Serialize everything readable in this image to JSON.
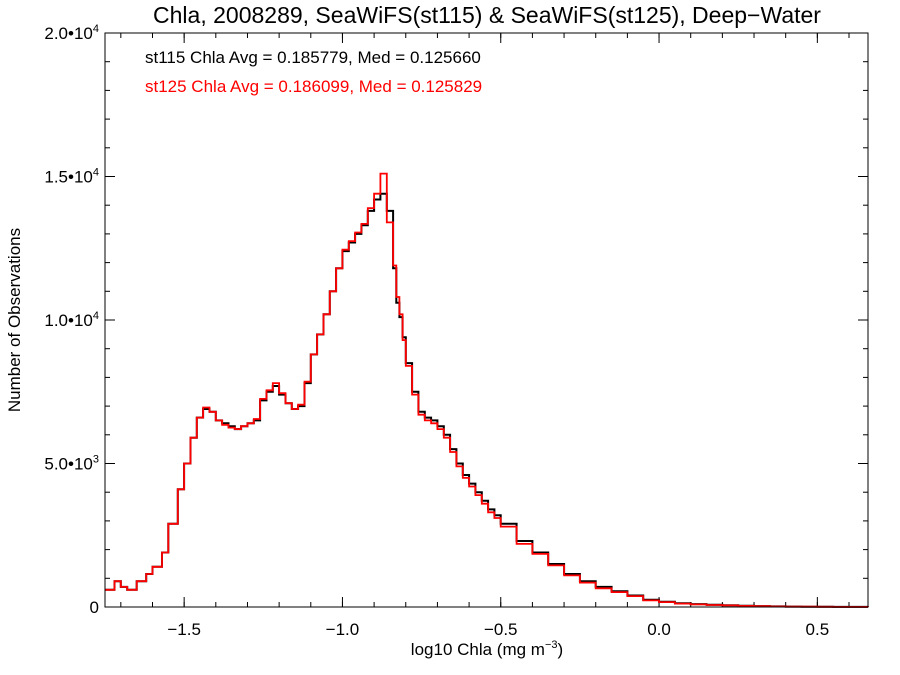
{
  "chart_data": {
    "type": "line",
    "style": "step histogram",
    "title": "Chla, 2008289, SeaWiFS(st115) & SeaWiFS(st125), Deep−Water",
    "xlabel_pre": "log10 Chla (mg m",
    "xlabel_sup": "−3",
    "xlabel_post": ")",
    "ylabel": "Number of Observations",
    "xlim": [
      -1.75,
      0.66
    ],
    "ylim": [
      0,
      20000
    ],
    "xticks": [
      -1.5,
      -1.0,
      -0.5,
      0.0,
      0.5
    ],
    "xtick_labels": [
      "−1.5",
      "−1.0",
      "−0.5",
      "0.0",
      "0.5"
    ],
    "xminor_step": 0.1,
    "yticks": [
      0,
      5000,
      10000,
      15000,
      20000
    ],
    "ytick_labels": [
      {
        "base": "0",
        "exp": ""
      },
      {
        "base": "5.0•10",
        "exp": "3"
      },
      {
        "base": "1.0•10",
        "exp": "4"
      },
      {
        "base": "1.5•10",
        "exp": "4"
      },
      {
        "base": "2.0•10",
        "exp": "4"
      }
    ],
    "yminor_step": 1000,
    "grid": false,
    "annotations": [
      {
        "text": "st115 Chla Avg = 0.185779, Med = 0.125660",
        "color": "#000000"
      },
      {
        "text": "st125 Chla Avg = 0.186099, Med = 0.125829",
        "color": "#ff0000"
      }
    ],
    "series": [
      {
        "color": "#000000",
        "x": [
          -1.75,
          -1.72,
          -1.7,
          -1.68,
          -1.65,
          -1.62,
          -1.6,
          -1.57,
          -1.55,
          -1.52,
          -1.5,
          -1.48,
          -1.46,
          -1.44,
          -1.42,
          -1.4,
          -1.38,
          -1.36,
          -1.34,
          -1.32,
          -1.3,
          -1.28,
          -1.26,
          -1.24,
          -1.22,
          -1.2,
          -1.18,
          -1.16,
          -1.14,
          -1.12,
          -1.1,
          -1.08,
          -1.06,
          -1.04,
          -1.02,
          -1.0,
          -0.98,
          -0.96,
          -0.94,
          -0.92,
          -0.9,
          -0.88,
          -0.86,
          -0.84,
          -0.83,
          -0.82,
          -0.81,
          -0.8,
          -0.78,
          -0.76,
          -0.74,
          -0.72,
          -0.7,
          -0.68,
          -0.66,
          -0.64,
          -0.62,
          -0.6,
          -0.58,
          -0.56,
          -0.54,
          -0.52,
          -0.5,
          -0.45,
          -0.4,
          -0.35,
          -0.3,
          -0.25,
          -0.2,
          -0.15,
          -0.1,
          -0.05,
          0.0,
          0.05,
          0.1,
          0.15,
          0.2,
          0.25,
          0.3,
          0.35,
          0.4,
          0.45,
          0.5,
          0.55,
          0.6,
          0.66
        ],
        "y": [
          600,
          900,
          700,
          600,
          900,
          1150,
          1400,
          1900,
          2900,
          4100,
          5000,
          5900,
          6600,
          6900,
          6800,
          6500,
          6400,
          6300,
          6200,
          6300,
          6400,
          6500,
          7200,
          7500,
          7700,
          7400,
          7100,
          6900,
          7000,
          7800,
          8800,
          9500,
          10200,
          11000,
          11800,
          12400,
          12700,
          13000,
          13300,
          13800,
          14200,
          14400,
          13800,
          11800,
          10600,
          10100,
          9400,
          8500,
          7500,
          6800,
          6600,
          6500,
          6300,
          6000,
          5500,
          5000,
          4600,
          4300,
          4000,
          3700,
          3400,
          3200,
          2900,
          2300,
          1900,
          1500,
          1150,
          900,
          700,
          550,
          400,
          250,
          180,
          130,
          100,
          80,
          60,
          45,
          30,
          20,
          15,
          10,
          8,
          5,
          3,
          2
        ]
      },
      {
        "color": "#ff0000",
        "x": [
          -1.75,
          -1.72,
          -1.7,
          -1.68,
          -1.65,
          -1.62,
          -1.6,
          -1.57,
          -1.55,
          -1.52,
          -1.5,
          -1.48,
          -1.46,
          -1.44,
          -1.42,
          -1.4,
          -1.38,
          -1.36,
          -1.34,
          -1.32,
          -1.3,
          -1.28,
          -1.26,
          -1.24,
          -1.22,
          -1.2,
          -1.18,
          -1.16,
          -1.14,
          -1.12,
          -1.1,
          -1.08,
          -1.06,
          -1.04,
          -1.02,
          -1.0,
          -0.98,
          -0.96,
          -0.94,
          -0.92,
          -0.9,
          -0.88,
          -0.86,
          -0.84,
          -0.83,
          -0.82,
          -0.81,
          -0.8,
          -0.78,
          -0.76,
          -0.74,
          -0.72,
          -0.7,
          -0.68,
          -0.66,
          -0.64,
          -0.62,
          -0.6,
          -0.58,
          -0.56,
          -0.54,
          -0.52,
          -0.5,
          -0.45,
          -0.4,
          -0.35,
          -0.3,
          -0.25,
          -0.2,
          -0.15,
          -0.1,
          -0.05,
          0.0,
          0.05,
          0.1,
          0.15,
          0.2,
          0.25,
          0.3,
          0.35,
          0.4,
          0.45,
          0.5,
          0.55,
          0.6,
          0.66
        ],
        "y": [
          600,
          900,
          700,
          600,
          900,
          1150,
          1400,
          1900,
          2900,
          4100,
          5000,
          5900,
          6600,
          6950,
          6800,
          6500,
          6350,
          6250,
          6200,
          6300,
          6400,
          6550,
          7250,
          7550,
          7800,
          7450,
          7100,
          6900,
          7050,
          7850,
          8800,
          9500,
          10200,
          11000,
          11800,
          12450,
          12750,
          13050,
          13350,
          13900,
          14400,
          15100,
          13400,
          11900,
          10800,
          10200,
          9300,
          8400,
          7400,
          6700,
          6500,
          6400,
          6200,
          5900,
          5400,
          4900,
          4500,
          4200,
          3900,
          3600,
          3300,
          3100,
          2800,
          2200,
          1850,
          1450,
          1100,
          850,
          650,
          520,
          380,
          230,
          170,
          120,
          90,
          70,
          55,
          40,
          28,
          18,
          12,
          9,
          6,
          4,
          2,
          1
        ]
      }
    ]
  }
}
